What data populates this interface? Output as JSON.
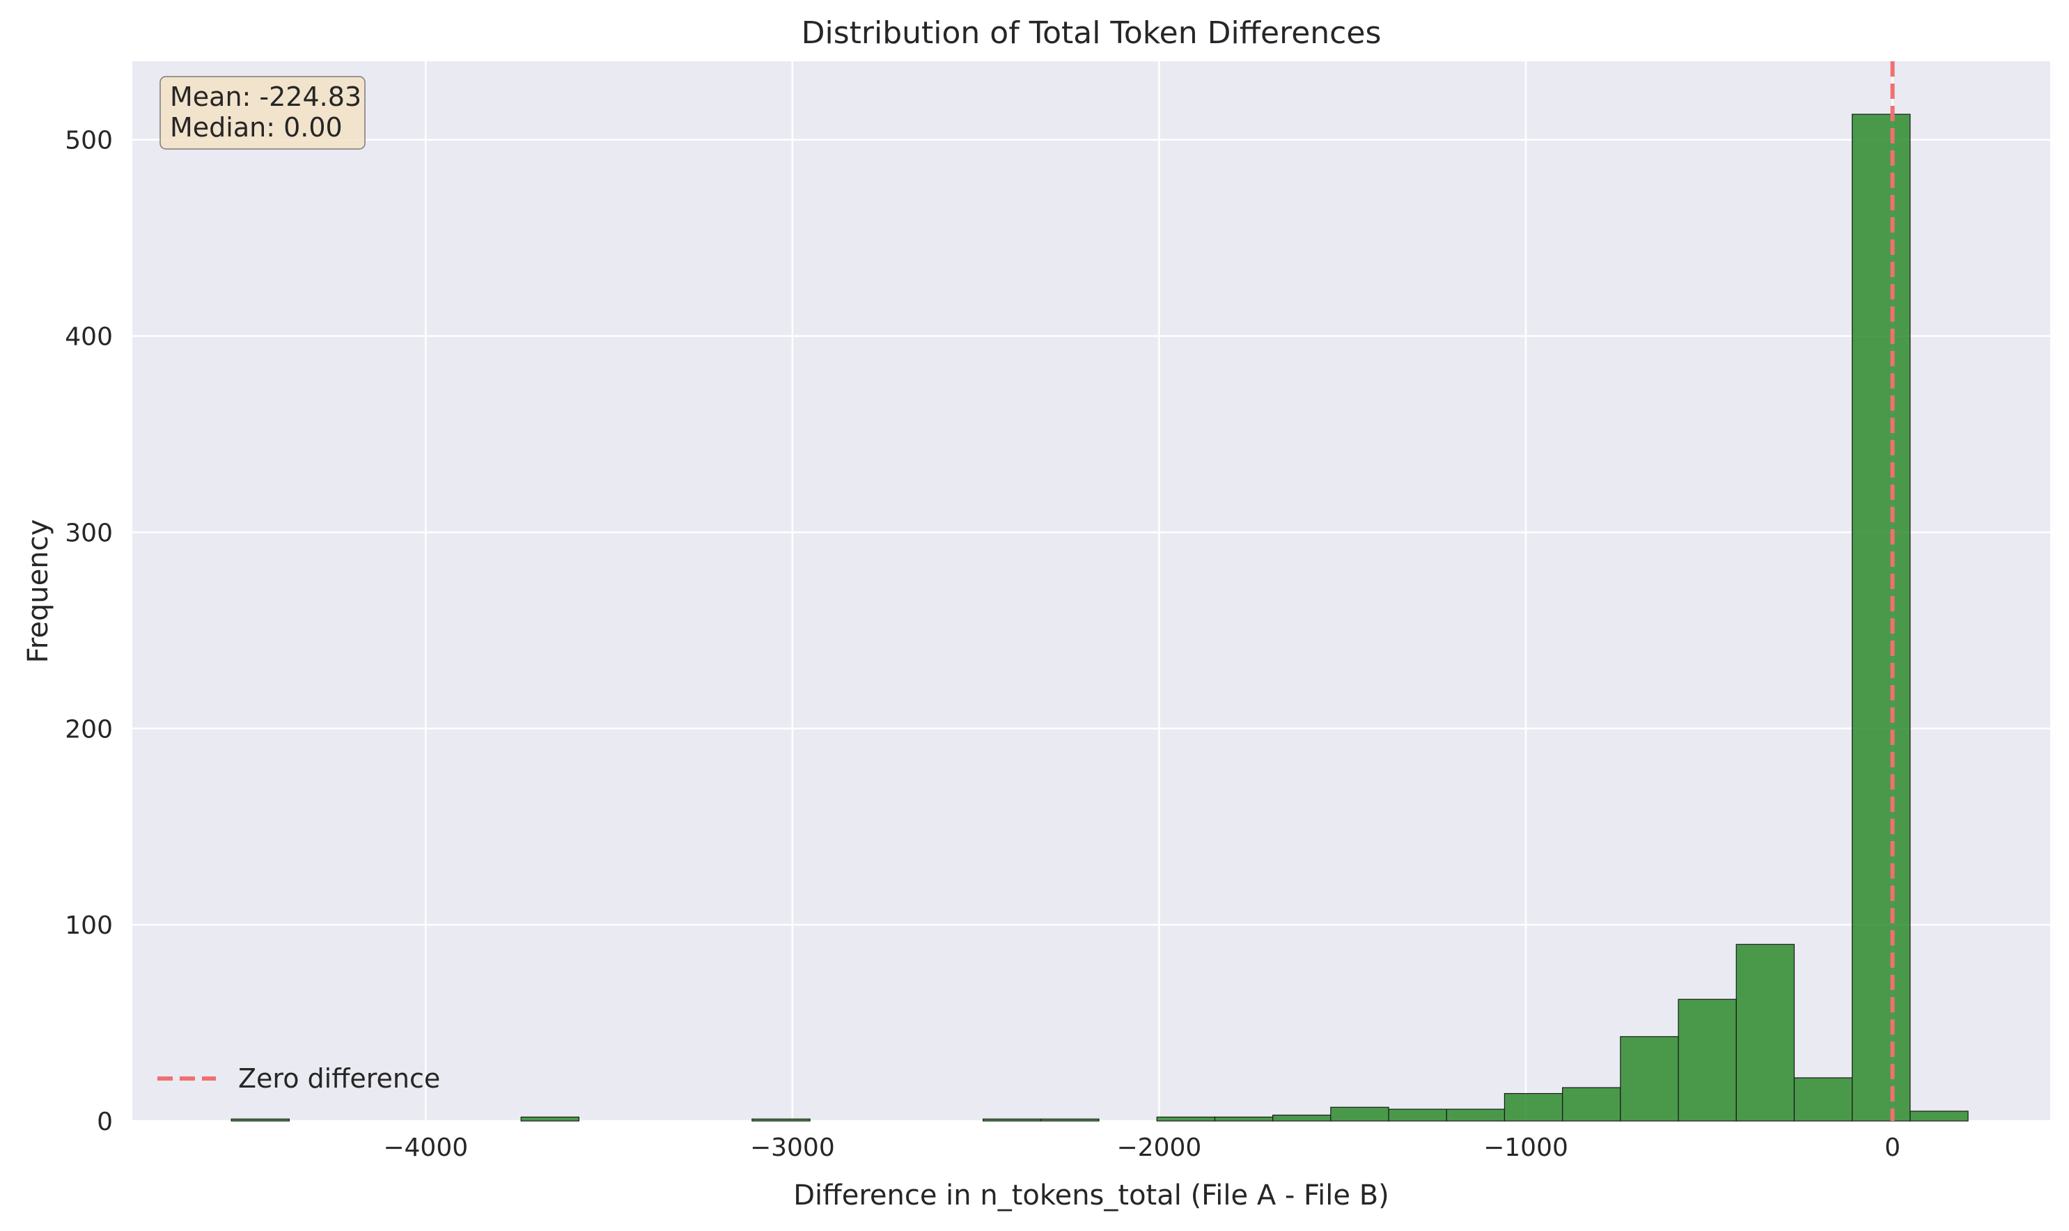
{
  "chart_data": {
    "type": "bar",
    "subtype": "histogram",
    "title": "Distribution of Total Token Differences",
    "xlabel": "Difference in n_tokens_total (File A - File B)",
    "ylabel": "Frequency",
    "xlim": [
      -4800,
      430
    ],
    "ylim": [
      0,
      540
    ],
    "x_ticks": [
      -4000,
      -3000,
      -2000,
      -1000,
      0
    ],
    "x_tick_labels": [
      "−4000",
      "−3000",
      "−2000",
      "−1000",
      "0"
    ],
    "y_ticks": [
      0,
      100,
      200,
      300,
      400,
      500
    ],
    "y_tick_labels": [
      "0",
      "100",
      "200",
      "300",
      "400",
      "500"
    ],
    "bin_width": 158,
    "bins": [
      {
        "start": -4530,
        "count": 1
      },
      {
        "start": -3740,
        "count": 2
      },
      {
        "start": -3110,
        "count": 1
      },
      {
        "start": -2480,
        "count": 1
      },
      {
        "start": -2322,
        "count": 1
      },
      {
        "start": -2006,
        "count": 2
      },
      {
        "start": -1848,
        "count": 2
      },
      {
        "start": -1690,
        "count": 3
      },
      {
        "start": -1532,
        "count": 7
      },
      {
        "start": -1374,
        "count": 6
      },
      {
        "start": -1216,
        "count": 6
      },
      {
        "start": -1058,
        "count": 14
      },
      {
        "start": -900,
        "count": 17
      },
      {
        "start": -742,
        "count": 43
      },
      {
        "start": -584,
        "count": 62
      },
      {
        "start": -426,
        "count": 90
      },
      {
        "start": -268,
        "count": 22
      },
      {
        "start": -110,
        "count": 513
      },
      {
        "start": 48,
        "count": 5
      }
    ],
    "bar_color": "#2e8b2e",
    "zero_line": {
      "x": 0,
      "label": "Zero difference",
      "color": "#f07070"
    },
    "stats": {
      "mean_text": "Mean: -224.83",
      "median_text": "Median: 0.00"
    },
    "legend_position": "lower-left",
    "stats_position": "upper-left",
    "grid": true,
    "plot_background": "#eaeaf2"
  }
}
